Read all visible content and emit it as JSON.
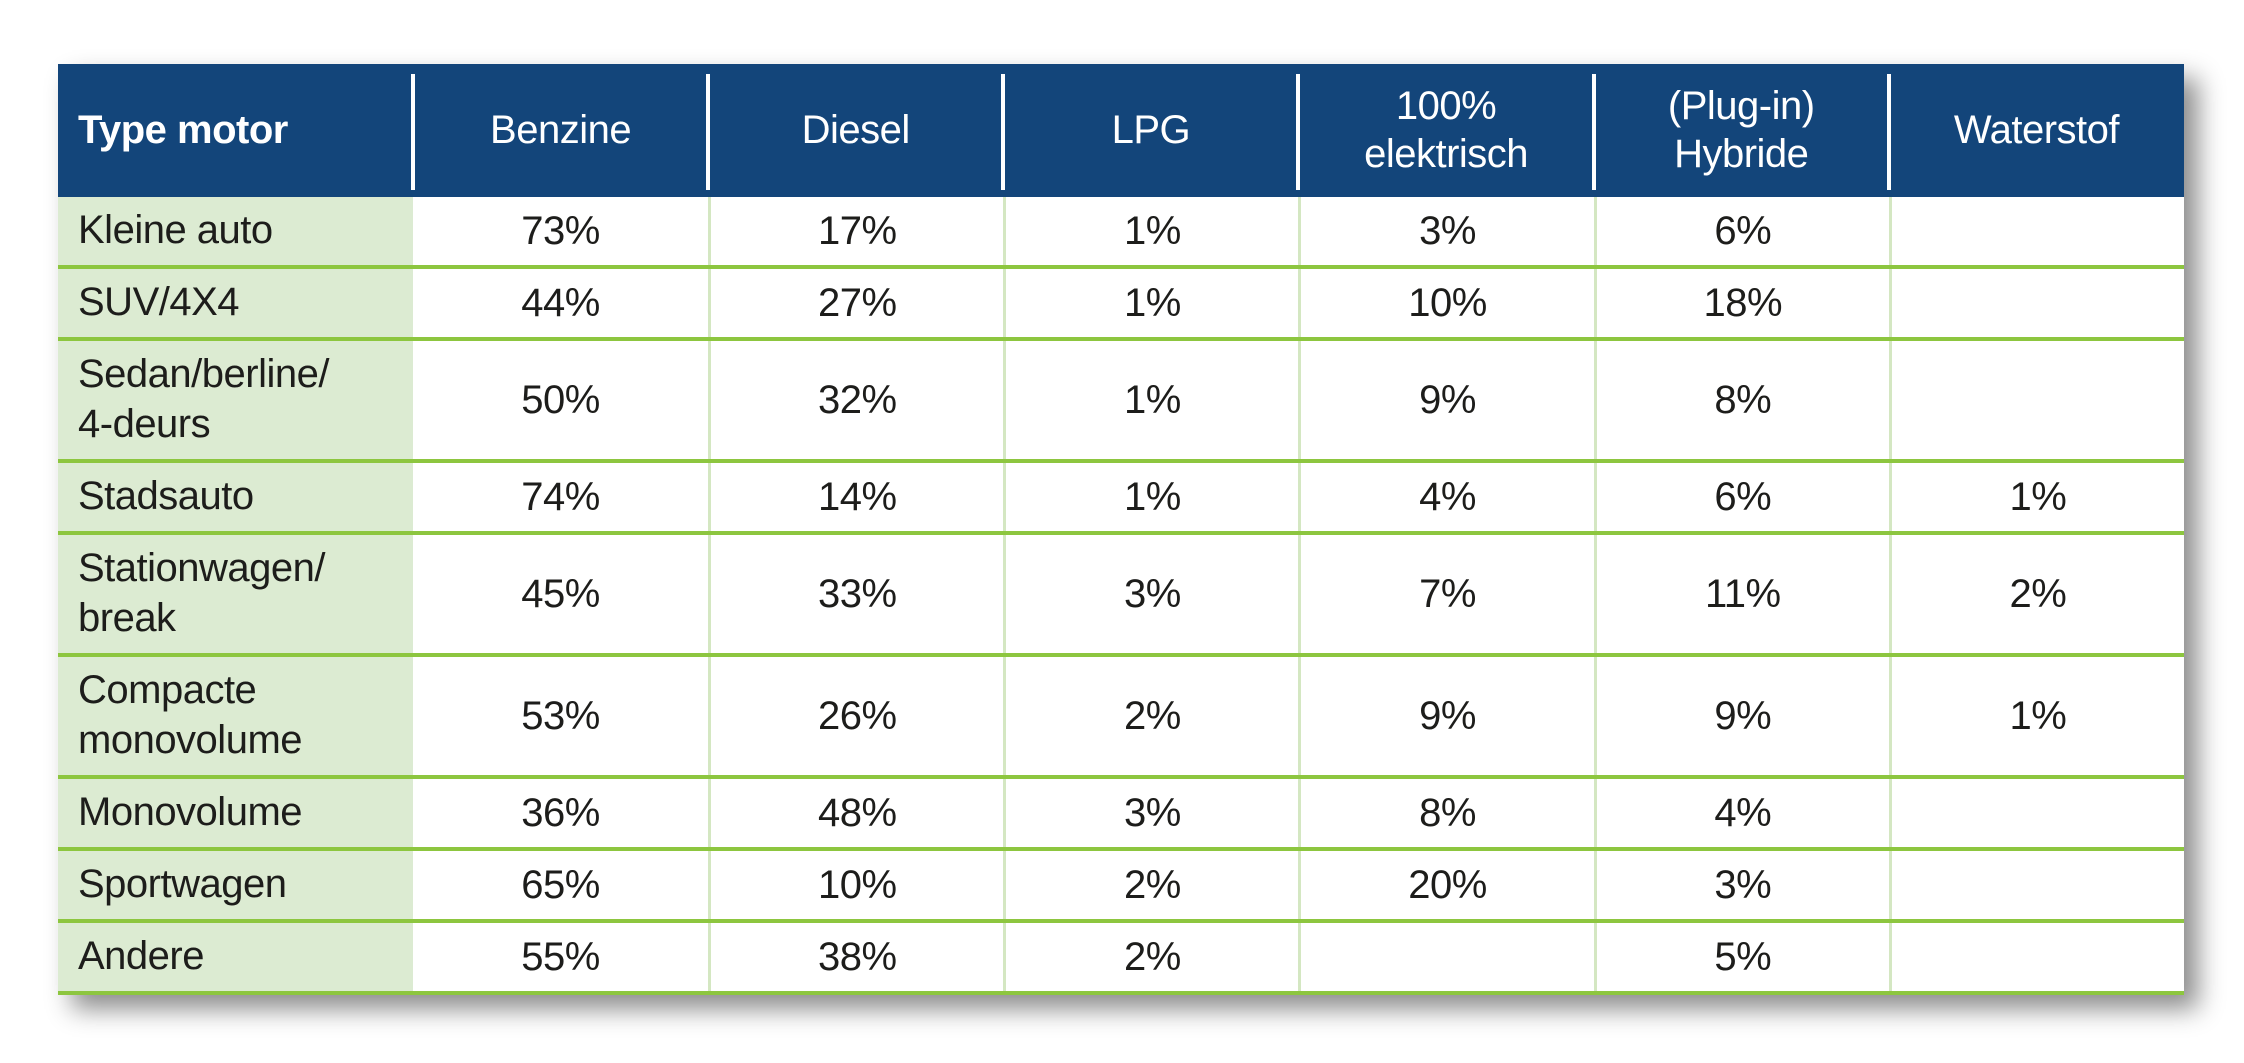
{
  "chart_data": {
    "type": "table",
    "title": "",
    "row_header_label": "Type motor",
    "columns": [
      "Benzine",
      "Diesel",
      "LPG",
      "100%\nelektrisch",
      "(Plug-in)\nHybride",
      "Waterstof"
    ],
    "rows": [
      {
        "label": "Kleine auto",
        "values": [
          "73%",
          "17%",
          "1%",
          "3%",
          "6%",
          ""
        ]
      },
      {
        "label": "SUV/4X4",
        "values": [
          "44%",
          "27%",
          "1%",
          "10%",
          "18%",
          ""
        ]
      },
      {
        "label": "Sedan/berline/\n4-deurs",
        "values": [
          "50%",
          "32%",
          "1%",
          "9%",
          "8%",
          ""
        ]
      },
      {
        "label": "Stadsauto",
        "values": [
          "74%",
          "14%",
          "1%",
          "4%",
          "6%",
          "1%"
        ]
      },
      {
        "label": "Stationwagen/\nbreak",
        "values": [
          "45%",
          "33%",
          "3%",
          "7%",
          "11%",
          "2%"
        ]
      },
      {
        "label": "Compacte\nmonovolume",
        "values": [
          "53%",
          "26%",
          "2%",
          "9%",
          "9%",
          "1%"
        ]
      },
      {
        "label": "Monovolume",
        "values": [
          "36%",
          "48%",
          "3%",
          "8%",
          "4%",
          ""
        ]
      },
      {
        "label": "Sportwagen",
        "values": [
          "65%",
          "10%",
          "2%",
          "20%",
          "3%",
          ""
        ]
      },
      {
        "label": "Andere",
        "values": [
          "55%",
          "38%",
          "2%",
          "",
          "5%",
          ""
        ]
      }
    ],
    "layout": {
      "legend": "none",
      "grid": "on"
    },
    "colors": {
      "header_bg": "#13457a",
      "header_text": "#ffffff",
      "label_column_bg": "#dcebd2",
      "row_divider_green": "#8dc63f",
      "column_divider_pale_green": "#d4e7c2",
      "body_text": "#1d1d1b",
      "page_bg": "#ffffff"
    }
  }
}
